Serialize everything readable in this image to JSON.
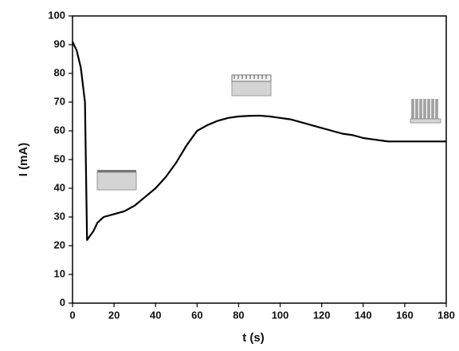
{
  "chart_data": {
    "type": "line",
    "xlabel": "t (s)",
    "ylabel": "I (mA)",
    "x": [
      0,
      2,
      4,
      6,
      7,
      8,
      10,
      12,
      15,
      20,
      25,
      30,
      35,
      40,
      45,
      50,
      55,
      58,
      60,
      65,
      70,
      75,
      80,
      85,
      90,
      95,
      100,
      105,
      110,
      115,
      120,
      125,
      130,
      135,
      140,
      145,
      150,
      152,
      160,
      170,
      180
    ],
    "values": [
      91,
      88,
      82,
      70,
      22,
      23,
      25,
      28,
      30,
      31,
      32,
      34,
      37,
      40,
      44,
      49,
      55,
      58,
      60,
      62,
      63.5,
      64.5,
      65,
      65.2,
      65.3,
      65,
      64.5,
      64,
      63,
      62,
      61,
      60,
      59,
      58.5,
      57.5,
      57,
      56.5,
      56.3,
      56.3,
      56.3,
      56.3
    ],
    "color": "#000000",
    "xlim": [
      0,
      180
    ],
    "xticks": [
      0,
      20,
      40,
      60,
      80,
      100,
      120,
      140,
      160,
      180
    ],
    "ylim": [
      0,
      100
    ],
    "yticks": [
      0,
      10,
      20,
      30,
      40,
      50,
      60,
      70,
      80,
      90,
      100
    ]
  }
}
